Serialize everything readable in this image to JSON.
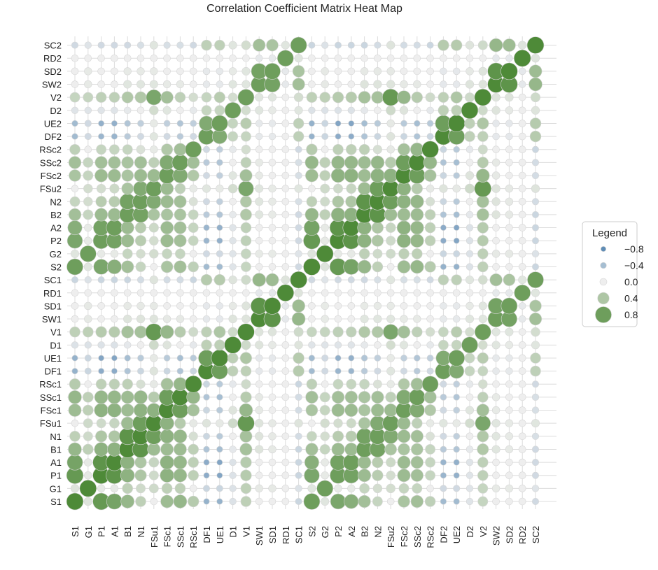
{
  "chart_data": {
    "type": "heatmap",
    "subtype": "bubble-correlation-matrix",
    "title": "Correlation Coefficient Matrix Heat Map",
    "labels": [
      "S1",
      "G1",
      "P1",
      "A1",
      "B1",
      "N1",
      "FSu1",
      "FSc1",
      "SSc1",
      "RSc1",
      "DF1",
      "UE1",
      "D1",
      "V1",
      "SW1",
      "SD1",
      "RD1",
      "SC1",
      "S2",
      "G2",
      "P2",
      "A2",
      "B2",
      "N2",
      "FSu2",
      "FSc2",
      "SSc2",
      "RSc2",
      "DF2",
      "UE2",
      "D2",
      "V2",
      "SW2",
      "SD2",
      "RD2",
      "SC2"
    ],
    "blocks": [
      {
        "vars": [
          "S",
          "G",
          "P",
          "A",
          "B",
          "N",
          "FSu",
          "FSc",
          "SSc",
          "RSc",
          "DF",
          "UE",
          "D",
          "V",
          "SW",
          "SD",
          "RD",
          "SC"
        ]
      }
    ],
    "within_period_pairs": {
      "S-P": 0.85,
      "S-A": 0.75,
      "P-A": 0.9,
      "S-B": 0.55,
      "P-B": 0.6,
      "A-B": 0.6,
      "S-G": 0.1,
      "G-P": 0.05,
      "G-A": 0.05,
      "G-B": 0.3,
      "S-N": 0.3,
      "P-N": 0.4,
      "A-N": 0.4,
      "B-N": 0.9,
      "G-N": 0.2,
      "S-FSu": 0.0,
      "G-FSu": 0.2,
      "P-FSu": 0.2,
      "A-FSu": 0.25,
      "B-FSu": 0.5,
      "N-FSu": 0.8,
      "S-FSc": 0.5,
      "G-FSc": 0.3,
      "P-FSc": 0.6,
      "A-FSc": 0.6,
      "B-FSc": 0.5,
      "N-FSc": 0.6,
      "FSu-FSc": 0.6,
      "S-SSc": 0.55,
      "G-SSc": 0.3,
      "P-SSc": 0.55,
      "A-SSc": 0.55,
      "B-SSc": 0.5,
      "N-SSc": 0.55,
      "FSu-SSc": 0.35,
      "FSc-SSc": 0.8,
      "S-RSc": 0.35,
      "G-RSc": 0.0,
      "P-RSc": 0.3,
      "A-RSc": 0.3,
      "B-RSc": 0.3,
      "N-RSc": 0.15,
      "FSu-RSc": 0.05,
      "FSc-RSc": 0.45,
      "SSc-RSc": 0.55,
      "S-DF": -0.5,
      "G-DF": -0.2,
      "P-DF": -0.55,
      "A-DF": -0.55,
      "B-DF": -0.35,
      "N-DF": -0.2,
      "FSu-DF": 0.1,
      "FSc-DF": -0.2,
      "SSc-DF": -0.35,
      "RSc-DF": -0.2,
      "S-UE": -0.5,
      "G-UE": -0.2,
      "P-UE": -0.6,
      "A-UE": -0.6,
      "B-UE": -0.4,
      "N-UE": -0.3,
      "FSu-UE": 0.05,
      "FSc-UE": -0.3,
      "SSc-UE": -0.4,
      "RSc-UE": -0.3,
      "DF-UE": 0.8,
      "S-D": -0.1,
      "G-D": -0.1,
      "P-D": -0.1,
      "A-D": -0.1,
      "B-D": -0.05,
      "N-D": 0.0,
      "FSu-D": 0.2,
      "FSc-D": 0.1,
      "SSc-D": 0.0,
      "RSc-D": -0.05,
      "DF-D": 0.3,
      "UE-D": 0.3,
      "S-V": 0.3,
      "G-V": 0.3,
      "P-V": 0.35,
      "A-V": 0.35,
      "B-V": 0.45,
      "N-V": 0.45,
      "FSu-V": 0.85,
      "FSc-V": 0.55,
      "SSc-V": 0.35,
      "RSc-V": 0.2,
      "DF-V": 0.3,
      "UE-V": 0.4,
      "D-V": 0.2,
      "S-SW": 0.0,
      "G-SW": 0.05,
      "P-SW": 0.0,
      "A-SW": 0.0,
      "B-SW": 0.1,
      "N-SW": 0.1,
      "FSu-SW": 0.1,
      "FSc-SW": 0.05,
      "SSc-SW": 0.05,
      "RSc-SW": 0.0,
      "DF-SW": -0.05,
      "UE-SW": -0.05,
      "D-SW": 0.1,
      "V-SW": 0.1,
      "S-SD": 0.0,
      "G-SD": 0.05,
      "P-SD": 0.0,
      "A-SD": 0.0,
      "B-SD": 0.05,
      "N-SD": 0.05,
      "FSu-SD": 0.05,
      "FSc-SD": 0.0,
      "SSc-SD": 0.0,
      "RSc-SD": 0.0,
      "DF-SD": -0.05,
      "UE-SD": -0.05,
      "D-SD": 0.05,
      "V-SD": 0.1,
      "SW-SD": 0.9,
      "S-RD": 0.0,
      "G-RD": 0.0,
      "P-RD": 0.0,
      "A-RD": 0.0,
      "B-RD": 0.0,
      "N-RD": 0.0,
      "FSu-RD": 0.0,
      "FSc-RD": 0.0,
      "SSc-RD": 0.0,
      "RSc-RD": 0.0,
      "DF-RD": 0.0,
      "UE-RD": 0.0,
      "D-RD": 0.0,
      "V-RD": 0.0,
      "SW-RD": -0.05,
      "SD-RD": -0.05,
      "S-SC": -0.2,
      "G-SC": -0.1,
      "P-SC": -0.2,
      "A-SC": -0.2,
      "B-SC": -0.2,
      "N-SC": -0.15,
      "FSu-SC": 0.1,
      "FSc-SC": -0.15,
      "SSc-SC": -0.15,
      "RSc-SC": -0.2,
      "DF-SC": 0.35,
      "UE-SC": 0.35,
      "D-SC": 0.1,
      "V-SC": 0.2,
      "SW-SC": 0.55,
      "SD-SC": 0.5,
      "RD-SC": 0.1
    },
    "cross_period_same_variable": 0.8,
    "cross_period_scale": 0.85,
    "value_range": [
      -1.0,
      1.0
    ],
    "legend": {
      "title": "Legend",
      "entries": [
        {
          "label": "−0.8",
          "value": -0.8
        },
        {
          "label": "−0.4",
          "value": -0.4
        },
        {
          "label": "0.0",
          "value": 0.0
        },
        {
          "label": "0.4",
          "value": 0.4
        },
        {
          "label": "0.8",
          "value": 0.8
        }
      ],
      "position": "right"
    },
    "colors": {
      "negative": "#3b75a8",
      "neutral": "#eeeeee",
      "positive": "#4e8a38"
    },
    "grid": true,
    "xlabel": "",
    "ylabel": ""
  }
}
